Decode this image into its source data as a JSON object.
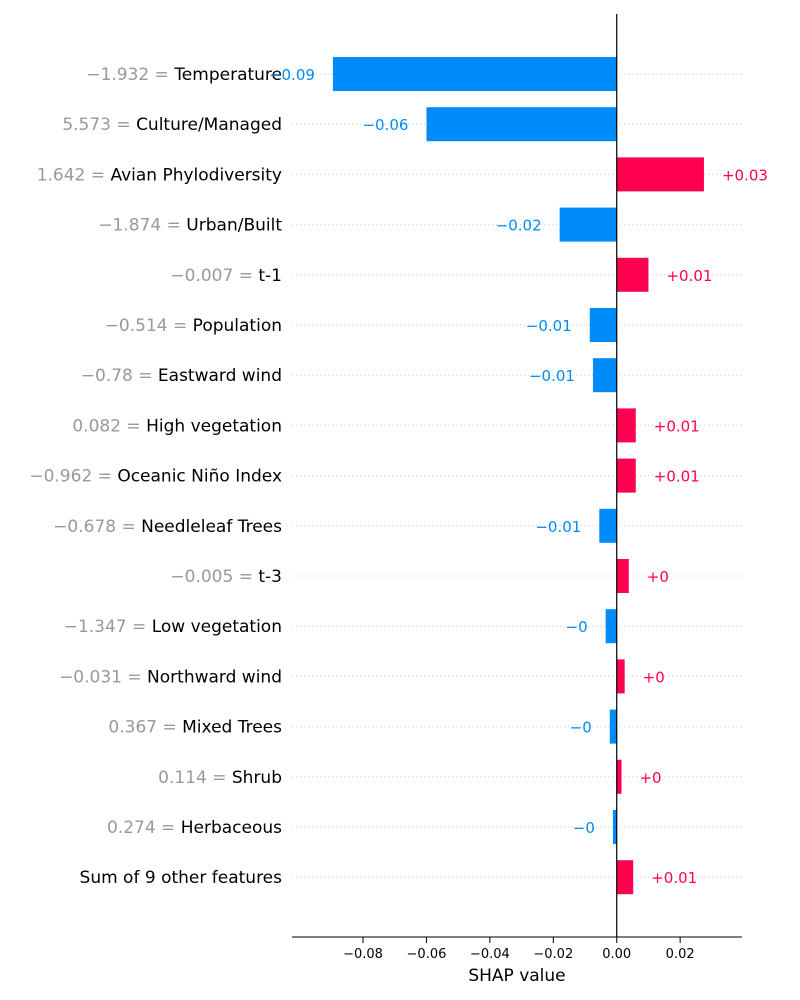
{
  "chart_data": {
    "type": "bar",
    "orientation": "horizontal",
    "chart_style": "SHAP waterfall (bar)",
    "xlabel": "SHAP value",
    "xlim": [
      -0.1024,
      0.0395
    ],
    "xticks": [
      -0.08,
      -0.06,
      -0.04,
      -0.02,
      0.0,
      0.02
    ],
    "xtick_labels": [
      "−0.08",
      "−0.06",
      "−0.04",
      "−0.02",
      "0.00",
      "0.02"
    ],
    "grid": "horizontal dotted row lines",
    "legend": "none",
    "colors": {
      "positive": "#ff0051",
      "negative": "#008bfb",
      "value_text": "#999999"
    },
    "features": [
      {
        "value_text": "−1.932",
        "name": "Temperature",
        "shap": -0.0895,
        "label": "−0.09"
      },
      {
        "value_text": "5.573",
        "name": "Culture/Managed",
        "shap": -0.06,
        "label": "−0.06"
      },
      {
        "value_text": "1.642",
        "name": "Avian Phylodiversity",
        "shap": 0.0275,
        "label": "+0.03"
      },
      {
        "value_text": "−1.874",
        "name": "Urban/Built",
        "shap": -0.018,
        "label": "−0.02"
      },
      {
        "value_text": "−0.007",
        "name": "t-1",
        "shap": 0.01,
        "label": "+0.01"
      },
      {
        "value_text": "−0.514",
        "name": "Population",
        "shap": -0.0085,
        "label": "−0.01"
      },
      {
        "value_text": "−0.78",
        "name": "Eastward wind",
        "shap": -0.0075,
        "label": "−0.01"
      },
      {
        "value_text": "0.082",
        "name": "High vegetation",
        "shap": 0.006,
        "label": "+0.01"
      },
      {
        "value_text": "−0.962",
        "name": "Oceanic Niño Index",
        "shap": 0.006,
        "label": "+0.01"
      },
      {
        "value_text": "−0.678",
        "name": "Needleleaf Trees",
        "shap": -0.0055,
        "label": "−0.01"
      },
      {
        "value_text": "−0.005",
        "name": "t-3",
        "shap": 0.0038,
        "label": "+0"
      },
      {
        "value_text": "−1.347",
        "name": "Low vegetation",
        "shap": -0.0035,
        "label": "−0"
      },
      {
        "value_text": "−0.031",
        "name": "Northward wind",
        "shap": 0.0025,
        "label": "+0"
      },
      {
        "value_text": "0.367",
        "name": "Mixed Trees",
        "shap": -0.0022,
        "label": "−0"
      },
      {
        "value_text": "0.114",
        "name": "Shrub",
        "shap": 0.0015,
        "label": "+0"
      },
      {
        "value_text": "0.274",
        "name": "Herbaceous",
        "shap": -0.0012,
        "label": "−0"
      },
      {
        "value_text": "",
        "name": "Sum of 9 other features",
        "shap": 0.0052,
        "label": "+0.01"
      }
    ]
  }
}
